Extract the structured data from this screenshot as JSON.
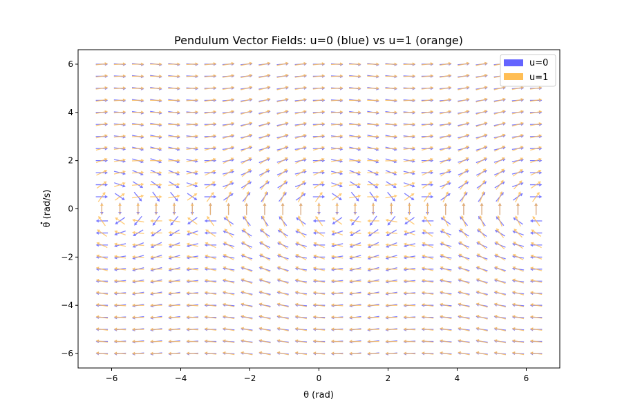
{
  "chart_data": {
    "type": "quiver",
    "title": "Pendulum Vector Fields: u=0 (blue) vs u=1 (orange)",
    "xlabel": "θ (rad)",
    "ylabel_symbol": "θ",
    "ylabel_rest": " (rad/s)",
    "xlim": [
      -6.97,
      6.97
    ],
    "ylim": [
      -6.6,
      6.6
    ],
    "xticks": [
      -6,
      -4,
      -2,
      0,
      2,
      4,
      6
    ],
    "xtick_labels": [
      "−6",
      "−4",
      "−2",
      "0",
      "2",
      "4",
      "6"
    ],
    "yticks": [
      -6,
      -4,
      -2,
      0,
      2,
      4,
      6
    ],
    "ytick_labels": [
      "−6",
      "−4",
      "−2",
      "0",
      "2",
      "4",
      "6"
    ],
    "grid_x": {
      "start": -6.283,
      "stop": 6.283,
      "count": 25
    },
    "grid_y": {
      "start": -6.0,
      "stop": 6.0,
      "count": 25
    },
    "arrow_length_scale": 0.46,
    "dynamics": "theta_dot = omega; omega_dot = -sin(theta) + u",
    "grid": false,
    "legend_position": "top-right",
    "series": [
      {
        "name": "u=0",
        "u": 0,
        "color": "#6464ff"
      },
      {
        "name": "u=1",
        "u": 1,
        "color": "#ffbe55"
      }
    ],
    "overlap_color": "#b07b6c"
  }
}
